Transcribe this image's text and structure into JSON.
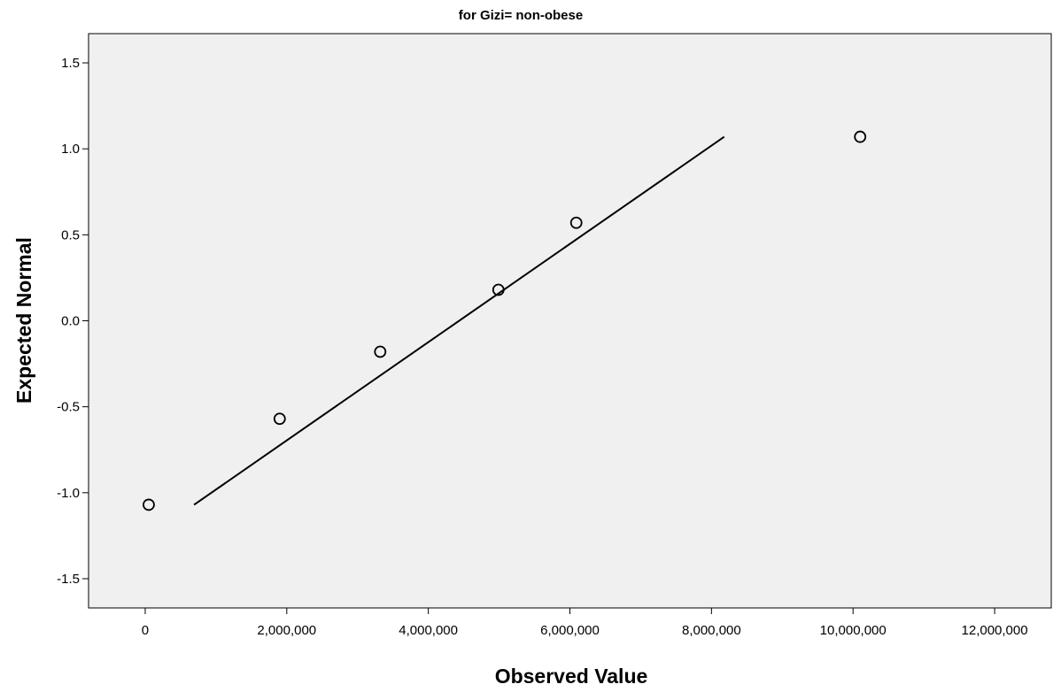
{
  "chart_data": {
    "type": "scatter",
    "title": "for Gizi= non-obese",
    "xlabel": "Observed Value",
    "ylabel": "Expected Normal",
    "xlim": [
      -800000,
      12800000
    ],
    "ylim": [
      -1.67,
      1.67
    ],
    "x_ticks": [
      0,
      2000000,
      4000000,
      6000000,
      8000000,
      10000000,
      12000000
    ],
    "x_tick_labels": [
      "0",
      "2,000,000",
      "4,000,000",
      "6,000,000",
      "8,000,000",
      "10,000,000",
      "12,000,000"
    ],
    "y_ticks": [
      1.5,
      1.0,
      0.5,
      0.0,
      -0.5,
      -1.0,
      -1.5
    ],
    "y_tick_labels": [
      "1.5",
      "1.0",
      "0.5",
      "0.0",
      "-0.5",
      "-1.0",
      "-1.5"
    ],
    "points": [
      {
        "x": 50000,
        "y": -1.07
      },
      {
        "x": 1900000,
        "y": -0.57
      },
      {
        "x": 3320000,
        "y": -0.18
      },
      {
        "x": 4990000,
        "y": 0.18
      },
      {
        "x": 6090000,
        "y": 0.57
      },
      {
        "x": 10100000,
        "y": 1.07
      }
    ],
    "reference_line": {
      "x": [
        690000,
        8180000
      ],
      "y": [
        -1.07,
        1.07
      ]
    },
    "grid": false,
    "colors": {
      "plot_background": "#f0f0f0",
      "line": "#000000",
      "marker": "#000000"
    }
  }
}
